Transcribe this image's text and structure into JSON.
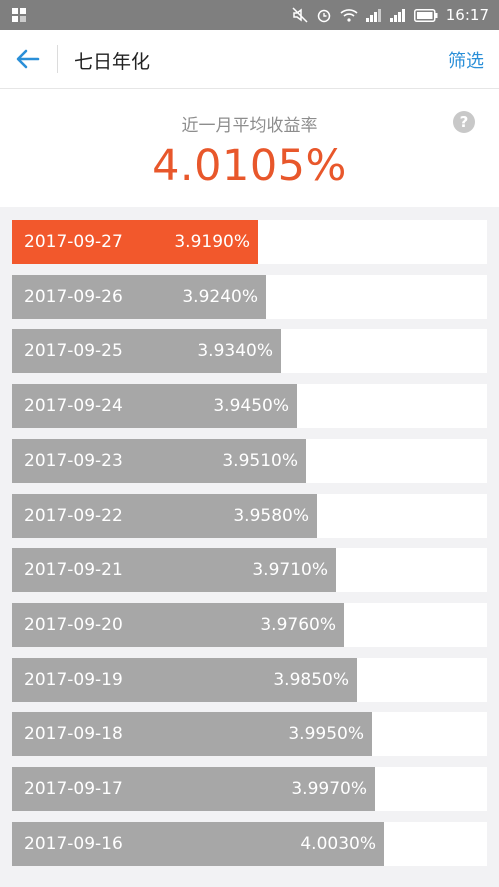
{
  "status_bar": {
    "time": "16:17",
    "icons": [
      "app-notification-icon",
      "mute-icon",
      "alarm-icon",
      "wifi-icon",
      "signal-icon",
      "signal-icon",
      "battery-icon"
    ]
  },
  "header": {
    "back_icon": "arrow-left-icon",
    "title": "七日年化",
    "filter_label": "筛选"
  },
  "summary": {
    "label": "近一月平均收益率",
    "help_icon": "question-icon",
    "help_glyph": "?",
    "value": "4.0105%"
  },
  "colors": {
    "accent": "#f2582c",
    "bar": "#a7a7a7",
    "link": "#2a8fd8"
  },
  "rows": [
    {
      "date": "2017-09-27",
      "rate": "3.9190%",
      "value": 3.919,
      "selected": true
    },
    {
      "date": "2017-09-26",
      "rate": "3.9240%",
      "value": 3.924
    },
    {
      "date": "2017-09-25",
      "rate": "3.9340%",
      "value": 3.934
    },
    {
      "date": "2017-09-24",
      "rate": "3.9450%",
      "value": 3.945
    },
    {
      "date": "2017-09-23",
      "rate": "3.9510%",
      "value": 3.951
    },
    {
      "date": "2017-09-22",
      "rate": "3.9580%",
      "value": 3.958
    },
    {
      "date": "2017-09-21",
      "rate": "3.9710%",
      "value": 3.971
    },
    {
      "date": "2017-09-20",
      "rate": "3.9760%",
      "value": 3.976
    },
    {
      "date": "2017-09-19",
      "rate": "3.9850%",
      "value": 3.985
    },
    {
      "date": "2017-09-18",
      "rate": "3.9950%",
      "value": 3.995
    },
    {
      "date": "2017-09-17",
      "rate": "3.9970%",
      "value": 3.997
    },
    {
      "date": "2017-09-16",
      "rate": "4.0030%",
      "value": 4.003
    }
  ]
}
